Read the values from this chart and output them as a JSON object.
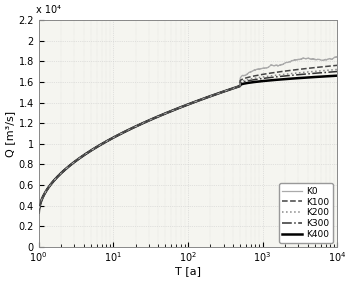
{
  "xlabel": "T [a]",
  "ylabel": "Q [m³/s]",
  "xlim": [
    1,
    10000
  ],
  "ylim": [
    0,
    22000
  ],
  "ytick_vals": [
    0,
    2000,
    4000,
    6000,
    8000,
    10000,
    12000,
    14000,
    16000,
    18000,
    20000,
    22000
  ],
  "ytick_labels": [
    "0",
    "0.2",
    "0.4",
    "0.6",
    "0.8",
    "1",
    "1.2",
    "1.4",
    "1.6",
    "1.8",
    "2",
    "2.2"
  ],
  "y_scale_label": "x 10⁴",
  "legend_labels": [
    "K0",
    "K100",
    "K200",
    "K300",
    "K400"
  ],
  "line_styles": [
    {
      "color": "#aaaaaa",
      "linestyle": "-",
      "linewidth": 0.9
    },
    {
      "color": "#444444",
      "linestyle": "--",
      "linewidth": 1.1
    },
    {
      "color": "#888888",
      "linestyle": ":",
      "linewidth": 1.1
    },
    {
      "color": "#333333",
      "linestyle": "-.",
      "linewidth": 1.1
    },
    {
      "color": "#000000",
      "linestyle": "-",
      "linewidth": 1.8
    }
  ],
  "bg_color": "#f5f5f0",
  "grid_color": "#cccccc",
  "jump_T": 500,
  "T_start": 1.0,
  "T_end": 10000.0,
  "start_val": 3200,
  "plateau_val": 15600,
  "jump_vals": [
    16300,
    16100,
    15950,
    15850,
    15700
  ],
  "end_vals": [
    19700,
    17600,
    17200,
    17000,
    16600
  ]
}
